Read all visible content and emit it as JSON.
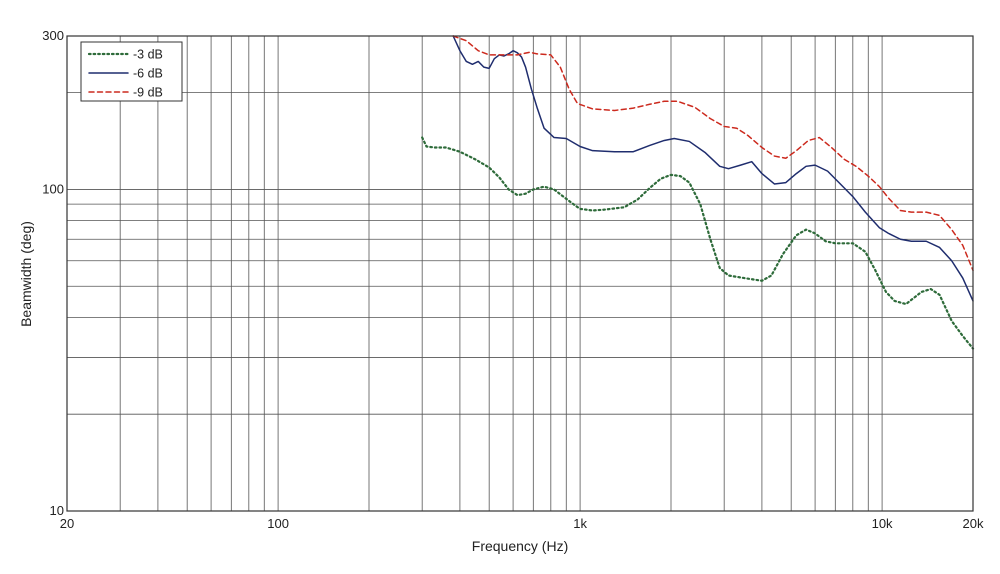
{
  "chart_data": {
    "type": "line",
    "title": "",
    "xlabel": "Frequency (Hz)",
    "ylabel": "Beamwidth (deg)",
    "x_scale": "log",
    "y_scale": "log",
    "xlim": [
      20,
      20000
    ],
    "ylim": [
      10,
      300
    ],
    "grid": true,
    "legend_position": "top-left",
    "x_ticks": [
      {
        "value": 20,
        "label": "20"
      },
      {
        "value": 100,
        "label": "100"
      },
      {
        "value": 1000,
        "label": "1k"
      },
      {
        "value": 10000,
        "label": "10k"
      },
      {
        "value": 20000,
        "label": "20k"
      }
    ],
    "y_ticks": [
      {
        "value": 10,
        "label": "10"
      },
      {
        "value": 100,
        "label": "100"
      },
      {
        "value": 300,
        "label": "300"
      }
    ],
    "series": [
      {
        "name": "-3 dB",
        "color": "#2e6b3a",
        "style": "dotted",
        "points": [
          [
            300,
            145
          ],
          [
            310,
            136
          ],
          [
            330,
            135
          ],
          [
            360,
            135
          ],
          [
            400,
            131
          ],
          [
            450,
            124
          ],
          [
            500,
            117
          ],
          [
            540,
            109
          ],
          [
            580,
            100
          ],
          [
            620,
            96
          ],
          [
            660,
            97
          ],
          [
            700,
            100
          ],
          [
            760,
            102
          ],
          [
            820,
            100
          ],
          [
            880,
            95
          ],
          [
            950,
            90
          ],
          [
            1000,
            87
          ],
          [
            1100,
            86
          ],
          [
            1200,
            86.5
          ],
          [
            1400,
            88
          ],
          [
            1550,
            93
          ],
          [
            1700,
            101
          ],
          [
            1850,
            108
          ],
          [
            2000,
            111
          ],
          [
            2150,
            110
          ],
          [
            2300,
            105
          ],
          [
            2500,
            90
          ],
          [
            2700,
            70
          ],
          [
            2900,
            57
          ],
          [
            3100,
            54
          ],
          [
            3500,
            53
          ],
          [
            4000,
            52
          ],
          [
            4300,
            54
          ],
          [
            4700,
            63
          ],
          [
            5200,
            72
          ],
          [
            5600,
            75
          ],
          [
            6000,
            73
          ],
          [
            6500,
            69
          ],
          [
            7000,
            68
          ],
          [
            8000,
            68
          ],
          [
            8800,
            64
          ],
          [
            9500,
            56
          ],
          [
            10300,
            48
          ],
          [
            11000,
            45
          ],
          [
            12000,
            44
          ],
          [
            13500,
            48
          ],
          [
            14500,
            49
          ],
          [
            15500,
            47
          ],
          [
            17000,
            39
          ],
          [
            18500,
            35
          ],
          [
            20000,
            32
          ]
        ]
      },
      {
        "name": "-6 dB",
        "color": "#1f2d6e",
        "style": "solid",
        "points": [
          [
            380,
            300
          ],
          [
            400,
            270
          ],
          [
            420,
            250
          ],
          [
            440,
            245
          ],
          [
            460,
            250
          ],
          [
            480,
            240
          ],
          [
            500,
            238
          ],
          [
            520,
            255
          ],
          [
            540,
            262
          ],
          [
            560,
            260
          ],
          [
            580,
            264
          ],
          [
            600,
            270
          ],
          [
            620,
            266
          ],
          [
            640,
            258
          ],
          [
            660,
            240
          ],
          [
            690,
            205
          ],
          [
            720,
            180
          ],
          [
            760,
            155
          ],
          [
            820,
            145
          ],
          [
            900,
            144
          ],
          [
            1000,
            136
          ],
          [
            1100,
            132
          ],
          [
            1300,
            131
          ],
          [
            1500,
            131
          ],
          [
            1700,
            137
          ],
          [
            1900,
            142
          ],
          [
            2050,
            144
          ],
          [
            2300,
            141
          ],
          [
            2600,
            130
          ],
          [
            2900,
            118
          ],
          [
            3100,
            116
          ],
          [
            3400,
            119
          ],
          [
            3700,
            122
          ],
          [
            4000,
            112
          ],
          [
            4400,
            104
          ],
          [
            4800,
            105
          ],
          [
            5200,
            112
          ],
          [
            5600,
            118
          ],
          [
            6000,
            119
          ],
          [
            6600,
            114
          ],
          [
            7200,
            105
          ],
          [
            8000,
            95
          ],
          [
            8800,
            85
          ],
          [
            9800,
            76
          ],
          [
            10500,
            73
          ],
          [
            11500,
            70
          ],
          [
            12500,
            69
          ],
          [
            14000,
            69
          ],
          [
            15500,
            66
          ],
          [
            17000,
            60
          ],
          [
            18500,
            53
          ],
          [
            20000,
            45
          ]
        ]
      },
      {
        "name": "-9 dB",
        "color": "#cc2a1e",
        "style": "dashed",
        "points": [
          [
            380,
            300
          ],
          [
            420,
            290
          ],
          [
            460,
            270
          ],
          [
            500,
            262
          ],
          [
            560,
            262
          ],
          [
            620,
            262
          ],
          [
            680,
            267
          ],
          [
            720,
            264
          ],
          [
            800,
            262
          ],
          [
            860,
            240
          ],
          [
            920,
            205
          ],
          [
            980,
            185
          ],
          [
            1100,
            178
          ],
          [
            1300,
            176
          ],
          [
            1500,
            179
          ],
          [
            1700,
            184
          ],
          [
            1900,
            188
          ],
          [
            2100,
            188
          ],
          [
            2400,
            180
          ],
          [
            2700,
            166
          ],
          [
            3000,
            157
          ],
          [
            3300,
            155
          ],
          [
            3600,
            147
          ],
          [
            4000,
            135
          ],
          [
            4400,
            127
          ],
          [
            4800,
            125
          ],
          [
            5200,
            132
          ],
          [
            5700,
            142
          ],
          [
            6200,
            145
          ],
          [
            6800,
            135
          ],
          [
            7500,
            124
          ],
          [
            8200,
            118
          ],
          [
            9000,
            110
          ],
          [
            9800,
            102
          ],
          [
            10500,
            94
          ],
          [
            11500,
            86
          ],
          [
            12500,
            85
          ],
          [
            14000,
            85
          ],
          [
            15500,
            83
          ],
          [
            17000,
            75
          ],
          [
            18500,
            67
          ],
          [
            20000,
            56
          ]
        ]
      }
    ]
  }
}
